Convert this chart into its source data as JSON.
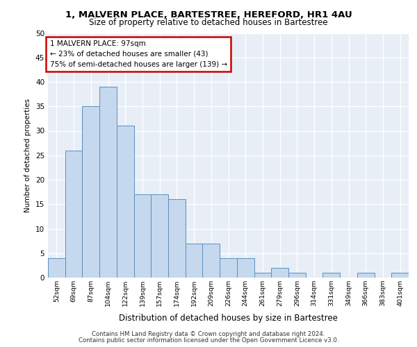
{
  "title1": "1, MALVERN PLACE, BARTESTREE, HEREFORD, HR1 4AU",
  "title2": "Size of property relative to detached houses in Bartestree",
  "xlabel": "Distribution of detached houses by size in Bartestree",
  "ylabel": "Number of detached properties",
  "categories": [
    "52sqm",
    "69sqm",
    "87sqm",
    "104sqm",
    "122sqm",
    "139sqm",
    "157sqm",
    "174sqm",
    "192sqm",
    "209sqm",
    "226sqm",
    "244sqm",
    "261sqm",
    "279sqm",
    "296sqm",
    "314sqm",
    "331sqm",
    "349sqm",
    "366sqm",
    "383sqm",
    "401sqm"
  ],
  "values": [
    4,
    26,
    35,
    39,
    31,
    17,
    17,
    16,
    7,
    7,
    4,
    4,
    1,
    2,
    1,
    0,
    1,
    0,
    1,
    0,
    1
  ],
  "bar_color": "#c5d8ed",
  "bar_edge_color": "#5a8fc0",
  "property_label": "1 MALVERN PLACE: 97sqm",
  "annotation_line1": "← 23% of detached houses are smaller (43)",
  "annotation_line2": "75% of semi-detached houses are larger (139) →",
  "annotation_box_color": "#cc0000",
  "ylim": [
    0,
    50
  ],
  "yticks": [
    0,
    5,
    10,
    15,
    20,
    25,
    30,
    35,
    40,
    45,
    50
  ],
  "background_color": "#e8eef6",
  "footer_line1": "Contains HM Land Registry data © Crown copyright and database right 2024.",
  "footer_line2": "Contains public sector information licensed under the Open Government Licence v3.0."
}
